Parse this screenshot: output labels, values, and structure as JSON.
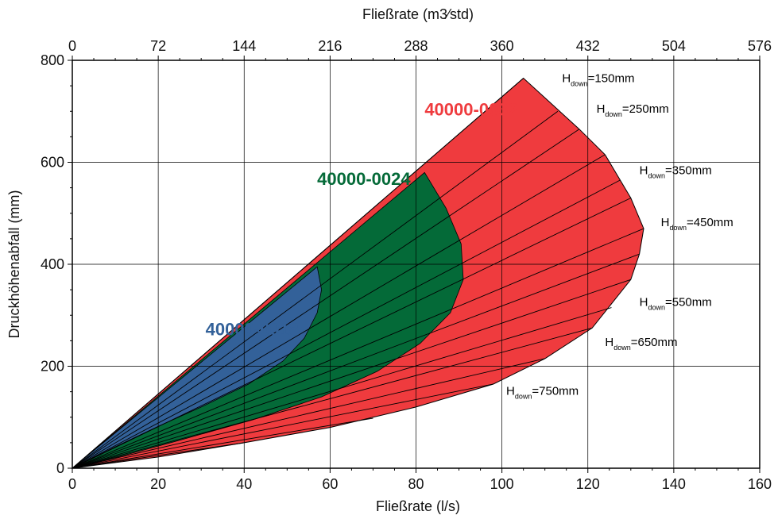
{
  "chart_data": {
    "type": "area",
    "xlabel": "Fließrate (l/s)",
    "x2label": "Fließrate (m3⁄std)",
    "ylabel": "Druckhöhenabfall (mm)",
    "xlim": [
      0,
      160
    ],
    "ylim": [
      0,
      800
    ],
    "x2lim": [
      0,
      576
    ],
    "x_ticks": [
      0,
      20,
      40,
      60,
      80,
      100,
      120,
      140,
      160
    ],
    "x2_ticks": [
      0,
      72,
      144,
      216,
      288,
      360,
      432,
      504,
      576
    ],
    "y_ticks": [
      0,
      200,
      400,
      600,
      800
    ],
    "grid": true,
    "outer_curve": [
      [
        0,
        0
      ],
      [
        105,
        765
      ],
      [
        118,
        665
      ],
      [
        124,
        615
      ],
      [
        130,
        530
      ],
      [
        133,
        470
      ],
      [
        132,
        420
      ],
      [
        130,
        370
      ],
      [
        121,
        275
      ],
      [
        110,
        215
      ],
      [
        98,
        165
      ],
      [
        80,
        120
      ],
      [
        60,
        80
      ],
      [
        40,
        50
      ],
      [
        20,
        22
      ],
      [
        0,
        0
      ]
    ],
    "series": [
      {
        "name": "40000-0018",
        "color": "#336199",
        "boundary": [
          [
            57,
            395
          ],
          [
            58,
            350
          ],
          [
            57,
            305
          ],
          [
            54,
            255
          ],
          [
            49,
            210
          ],
          [
            41,
            165
          ],
          [
            30,
            120
          ],
          [
            20,
            82
          ],
          [
            10,
            42
          ],
          [
            0,
            0
          ]
        ]
      },
      {
        "name": "40000-0024",
        "color": "#046A38",
        "boundary": [
          [
            82,
            580
          ],
          [
            87,
            510
          ],
          [
            90.5,
            440
          ],
          [
            91,
            370
          ],
          [
            88,
            305
          ],
          [
            81,
            245
          ],
          [
            71,
            190
          ],
          [
            58,
            140
          ],
          [
            42,
            95
          ],
          [
            25,
            55
          ],
          [
            12,
            25
          ],
          [
            0,
            0
          ]
        ]
      },
      {
        "name": "40000-0032",
        "color": "#EF3B3E",
        "boundary": []
      }
    ],
    "h_down_lines": [
      [
        105,
        765
      ],
      [
        113,
        700
      ],
      [
        118,
        665
      ],
      [
        124,
        615
      ],
      [
        127.5,
        565
      ],
      [
        130,
        530
      ],
      [
        133,
        470
      ],
      [
        132,
        420
      ],
      [
        130,
        370
      ],
      [
        125.5,
        315
      ],
      [
        121,
        275
      ],
      [
        110,
        215
      ],
      [
        98,
        165
      ],
      [
        70,
        98
      ],
      [
        40,
        50
      ]
    ],
    "annotations": [
      {
        "prefix": "H",
        "sub": "down",
        "value": "=150mm",
        "x": 114,
        "y": 757
      },
      {
        "prefix": "H",
        "sub": "down",
        "value": "=250mm",
        "x": 122,
        "y": 697
      },
      {
        "prefix": "H",
        "sub": "down",
        "value": "=350mm",
        "x": 132,
        "y": 577
      },
      {
        "prefix": "H",
        "sub": "down",
        "value": "=450mm",
        "x": 137,
        "y": 475
      },
      {
        "prefix": "H",
        "sub": "down",
        "value": "=550mm",
        "x": 132,
        "y": 318
      },
      {
        "prefix": "H",
        "sub": "down",
        "value": "=650mm",
        "x": 124,
        "y": 240
      },
      {
        "prefix": "H",
        "sub": "down",
        "value": "=750mm",
        "x": 101,
        "y": 144
      }
    ],
    "region_labels": [
      {
        "text": "40000-0032",
        "color": "#EF3B3E",
        "x": 82,
        "y": 692
      },
      {
        "text": "40000-0024",
        "color": "#046A38",
        "x": 57,
        "y": 556
      },
      {
        "text": "40000-0018",
        "color": "#336199",
        "x": 31,
        "y": 261
      }
    ]
  }
}
